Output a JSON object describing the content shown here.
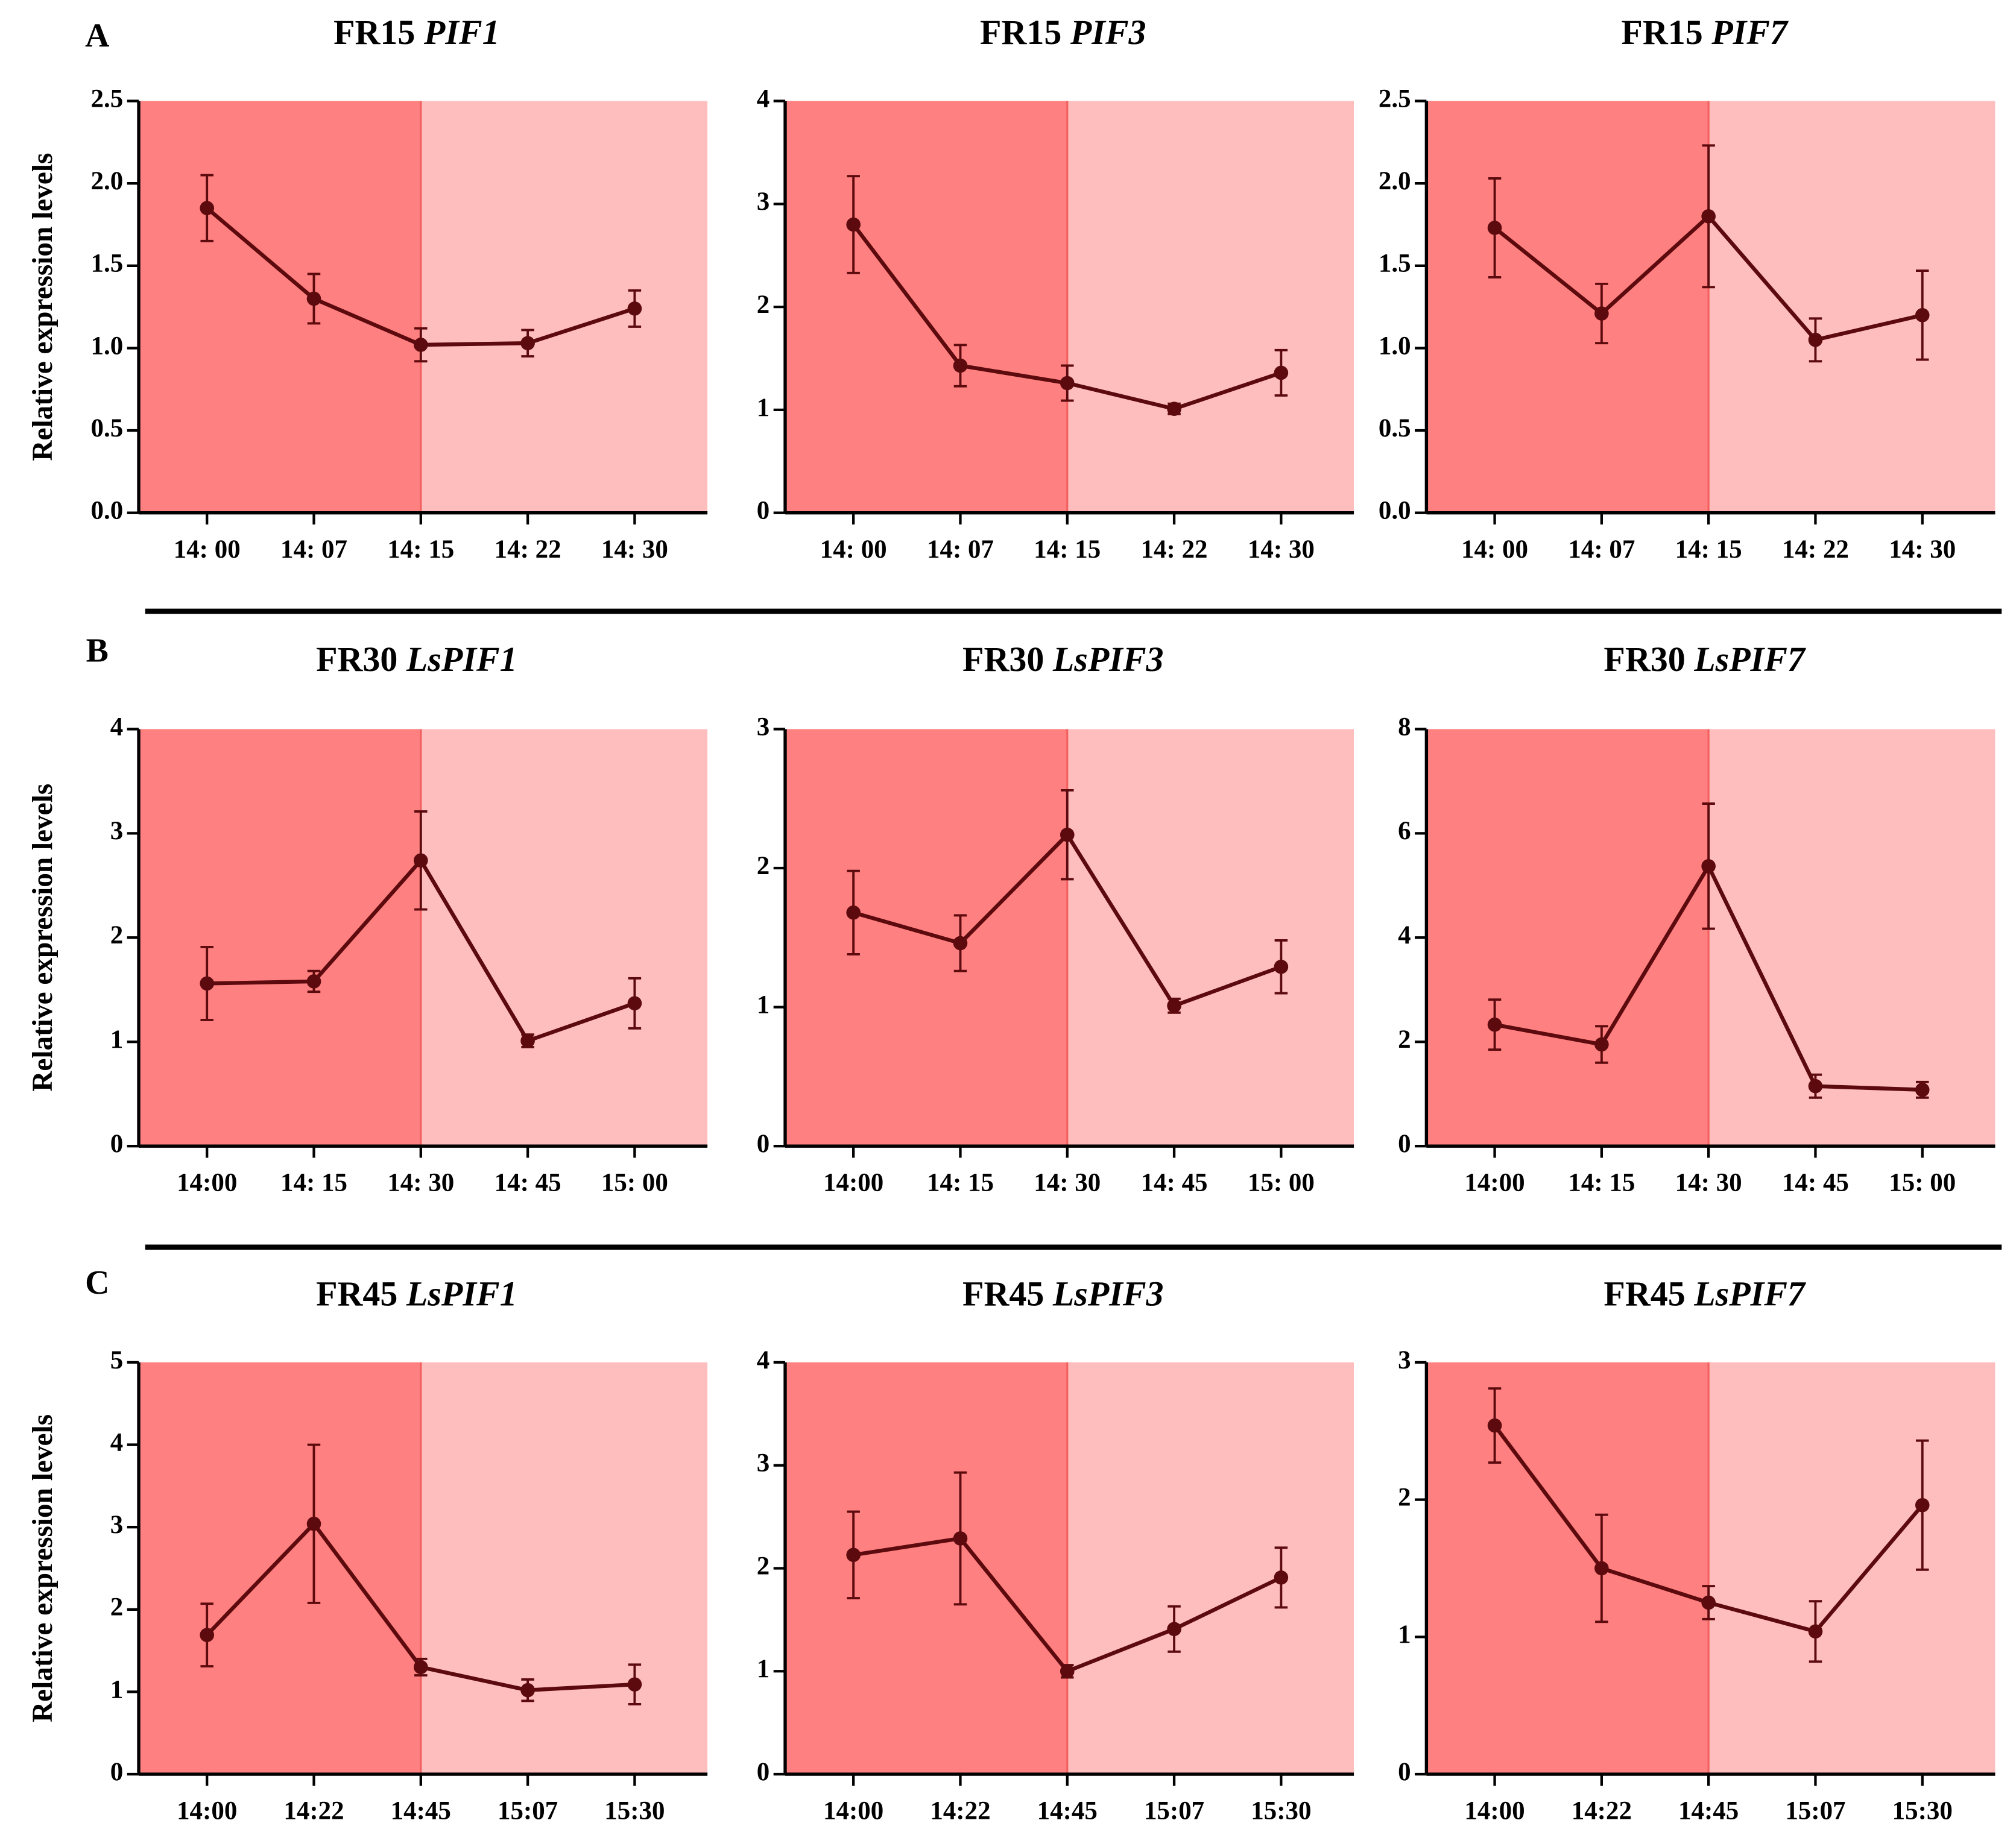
{
  "panels": [
    "A",
    "B",
    "C"
  ],
  "chart_data": [
    {
      "type": "line",
      "title": [
        "FR15",
        "PIF1"
      ],
      "ylabel": "Relative expression levels",
      "categories": [
        "14: 00",
        "14: 07",
        "14: 15",
        "14: 22",
        "14: 30"
      ],
      "values": [
        1.85,
        1.3,
        1.02,
        1.03,
        1.24
      ],
      "errors": [
        0.2,
        0.15,
        0.1,
        0.08,
        0.11
      ],
      "ylim": [
        0,
        2.5
      ],
      "yticks": [
        {
          "value": 0,
          "label": "0.0"
        },
        0.5,
        {
          "value": 1,
          "label": "1.0"
        },
        1.5,
        {
          "value": 2,
          "label": "2.0"
        },
        2.5
      ],
      "color": "#5c0a0e",
      "shade_colors": [
        "#ff8080",
        "#ffbebe"
      ],
      "shade_boundary_index": 2
    },
    {
      "type": "line",
      "title": [
        "FR15",
        "PIF3"
      ],
      "categories": [
        "14: 00",
        "14: 07",
        "14: 15",
        "14: 22",
        "14: 30"
      ],
      "values": [
        2.8,
        1.43,
        1.26,
        1.01,
        1.36
      ],
      "errors": [
        0.47,
        0.2,
        0.17,
        0.05,
        0.22
      ],
      "ylim": [
        0,
        4
      ],
      "yticks": [
        0,
        1,
        2,
        3,
        4
      ],
      "color": "#5c0a0e",
      "shade_colors": [
        "#ff8080",
        "#ffbebe"
      ],
      "shade_boundary_index": 2
    },
    {
      "type": "line",
      "title": [
        "FR15",
        "PIF7"
      ],
      "categories": [
        "14: 00",
        "14: 07",
        "14: 15",
        "14: 22",
        "14: 30"
      ],
      "values": [
        1.73,
        1.21,
        1.8,
        1.05,
        1.2
      ],
      "errors": [
        0.3,
        0.18,
        0.43,
        0.13,
        0.27
      ],
      "ylim": [
        0,
        2.5
      ],
      "yticks": [
        {
          "value": 0,
          "label": "0.0"
        },
        0.5,
        {
          "value": 1,
          "label": "1.0"
        },
        1.5,
        {
          "value": 2,
          "label": "2.0"
        },
        2.5
      ],
      "color": "#5c0a0e",
      "shade_colors": [
        "#ff8080",
        "#ffbebe"
      ],
      "shade_boundary_index": 2
    },
    {
      "type": "line",
      "title": [
        "FR30",
        "LsPIF1"
      ],
      "ylabel": "Relative expression levels",
      "categories": [
        "14:00",
        "14: 15",
        "14: 30",
        "14: 45",
        "15: 00"
      ],
      "values": [
        1.56,
        1.58,
        2.74,
        1.01,
        1.37
      ],
      "errors": [
        0.35,
        0.1,
        0.47,
        0.06,
        0.24
      ],
      "ylim": [
        0,
        4
      ],
      "yticks": [
        0,
        1,
        2,
        3,
        4
      ],
      "color": "#5c0a0e",
      "shade_colors": [
        "#ff8080",
        "#ffbebe"
      ],
      "shade_boundary_index": 2
    },
    {
      "type": "line",
      "title": [
        "FR30",
        "LsPIF3"
      ],
      "categories": [
        "14:00",
        "14: 15",
        "14: 30",
        "14: 45",
        "15: 00"
      ],
      "values": [
        1.68,
        1.46,
        2.24,
        1.01,
        1.29
      ],
      "errors": [
        0.3,
        0.2,
        0.32,
        0.05,
        0.19
      ],
      "ylim": [
        0,
        3
      ],
      "yticks": [
        0,
        1,
        2,
        3
      ],
      "color": "#5c0a0e",
      "shade_colors": [
        "#ff8080",
        "#ffbebe"
      ],
      "shade_boundary_index": 2
    },
    {
      "type": "line",
      "title": [
        "FR30",
        "LsPIF7"
      ],
      "categories": [
        "14:00",
        "14: 15",
        "14: 30",
        "14: 45",
        "15: 00"
      ],
      "values": [
        2.33,
        1.95,
        5.37,
        1.15,
        1.08
      ],
      "errors": [
        0.48,
        0.35,
        1.2,
        0.22,
        0.15
      ],
      "ylim": [
        0,
        8
      ],
      "yticks": [
        0,
        2,
        4,
        6,
        8
      ],
      "color": "#5c0a0e",
      "shade_colors": [
        "#ff8080",
        "#ffbebe"
      ],
      "shade_boundary_index": 2
    },
    {
      "type": "line",
      "title": [
        "FR45",
        "LsPIF1"
      ],
      "ylabel": "Relative expression levels",
      "categories": [
        "14:00",
        "14:22",
        "14:45",
        "15:07",
        "15:30"
      ],
      "values": [
        1.69,
        3.04,
        1.3,
        1.02,
        1.09
      ],
      "errors": [
        0.38,
        0.96,
        0.1,
        0.13,
        0.24
      ],
      "ylim": [
        0,
        5
      ],
      "yticks": [
        0,
        1,
        2,
        3,
        4,
        5
      ],
      "color": "#5c0a0e",
      "shade_colors": [
        "#ff8080",
        "#ffbebe"
      ],
      "shade_boundary_index": 2
    },
    {
      "type": "line",
      "title": [
        "FR45",
        "LsPIF3"
      ],
      "categories": [
        "14:00",
        "14:22",
        "14:45",
        "15:07",
        "15:30"
      ],
      "values": [
        2.13,
        2.29,
        1.0,
        1.41,
        1.91
      ],
      "errors": [
        0.42,
        0.64,
        0.06,
        0.22,
        0.29
      ],
      "ylim": [
        0,
        4
      ],
      "yticks": [
        0,
        1,
        2,
        3,
        4
      ],
      "color": "#5c0a0e",
      "shade_colors": [
        "#ff8080",
        "#ffbebe"
      ],
      "shade_boundary_index": 2
    },
    {
      "type": "line",
      "title": [
        "FR45",
        "LsPIF7"
      ],
      "categories": [
        "14:00",
        "14:22",
        "14:45",
        "15:07",
        "15:30"
      ],
      "values": [
        2.54,
        1.5,
        1.25,
        1.04,
        1.96
      ],
      "errors": [
        0.27,
        0.39,
        0.12,
        0.22,
        0.47
      ],
      "ylim": [
        0,
        3
      ],
      "yticks": [
        0,
        1,
        2,
        3
      ],
      "color": "#5c0a0e",
      "shade_colors": [
        "#ff8080",
        "#ffbebe"
      ],
      "shade_boundary_index": 2
    }
  ]
}
